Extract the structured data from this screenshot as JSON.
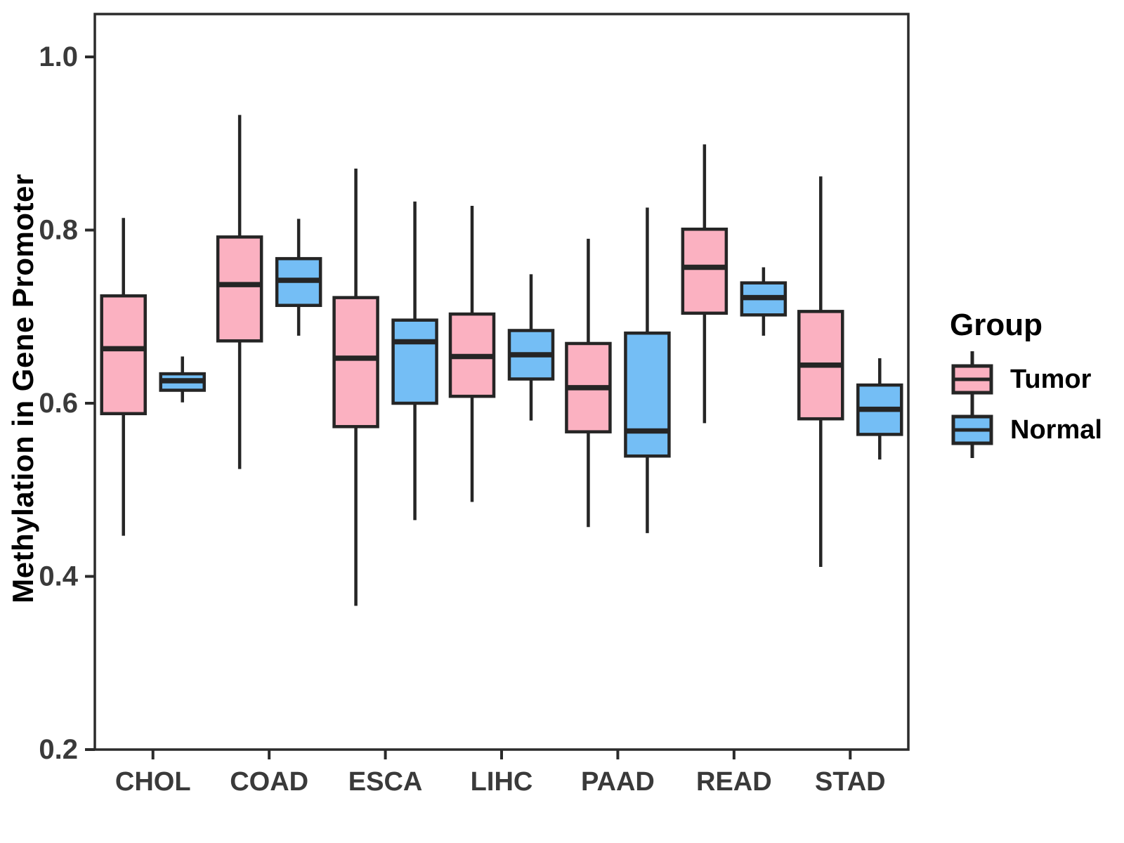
{
  "figure": {
    "y_axis_title": "Methylation in Gene Promoter",
    "legend": {
      "title": "Group",
      "items": [
        {
          "label": "Tumor",
          "color": "#FBB1C1"
        },
        {
          "label": "Normal",
          "color": "#74BEF5"
        }
      ]
    }
  },
  "chart_data": {
    "type": "boxplot",
    "title": "",
    "xlabel": "",
    "ylabel": "Methylation in Gene Promoter",
    "ylim": [
      0.2,
      1.05
    ],
    "yticks": [
      1.0,
      0.8,
      0.6,
      0.4,
      0.2
    ],
    "ytick_labels": [
      "1.0",
      "0.8",
      "0.6",
      "0.4",
      "0.2"
    ],
    "grid": false,
    "panel_border": true,
    "legend_position": "right",
    "categories": [
      "CHOL",
      "COAD",
      "ESCA",
      "LIHC",
      "PAAD",
      "READ",
      "STAD"
    ],
    "groups": [
      {
        "name": "Tumor",
        "fill": "#FBB1C1"
      },
      {
        "name": "Normal",
        "fill": "#74BEF5"
      }
    ],
    "style": {
      "line_color": "#252525",
      "axis_text_color": "#3a3a3a",
      "background": "#ffffff"
    },
    "boxes": [
      {
        "category": "CHOL",
        "group": "Tumor",
        "whisker_low": 0.447,
        "q1": 0.588,
        "median": 0.663,
        "q3": 0.724,
        "whisker_high": 0.814
      },
      {
        "category": "CHOL",
        "group": "Normal",
        "whisker_low": 0.601,
        "q1": 0.615,
        "median": 0.626,
        "q3": 0.634,
        "whisker_high": 0.654
      },
      {
        "category": "COAD",
        "group": "Tumor",
        "whisker_low": 0.524,
        "q1": 0.672,
        "median": 0.737,
        "q3": 0.792,
        "whisker_high": 0.933
      },
      {
        "category": "COAD",
        "group": "Normal",
        "whisker_low": 0.678,
        "q1": 0.713,
        "median": 0.742,
        "q3": 0.767,
        "whisker_high": 0.813
      },
      {
        "category": "ESCA",
        "group": "Tumor",
        "whisker_low": 0.366,
        "q1": 0.573,
        "median": 0.652,
        "q3": 0.722,
        "whisker_high": 0.871
      },
      {
        "category": "ESCA",
        "group": "Normal",
        "whisker_low": 0.465,
        "q1": 0.6,
        "median": 0.671,
        "q3": 0.696,
        "whisker_high": 0.833
      },
      {
        "category": "LIHC",
        "group": "Tumor",
        "whisker_low": 0.486,
        "q1": 0.608,
        "median": 0.654,
        "q3": 0.703,
        "whisker_high": 0.828
      },
      {
        "category": "LIHC",
        "group": "Normal",
        "whisker_low": 0.58,
        "q1": 0.628,
        "median": 0.656,
        "q3": 0.684,
        "whisker_high": 0.749
      },
      {
        "category": "PAAD",
        "group": "Tumor",
        "whisker_low": 0.457,
        "q1": 0.567,
        "median": 0.618,
        "q3": 0.669,
        "whisker_high": 0.79
      },
      {
        "category": "PAAD",
        "group": "Normal",
        "whisker_low": 0.45,
        "q1": 0.539,
        "median": 0.568,
        "q3": 0.681,
        "whisker_high": 0.826
      },
      {
        "category": "READ",
        "group": "Tumor",
        "whisker_low": 0.577,
        "q1": 0.704,
        "median": 0.757,
        "q3": 0.801,
        "whisker_high": 0.899
      },
      {
        "category": "READ",
        "group": "Normal",
        "whisker_low": 0.678,
        "q1": 0.702,
        "median": 0.722,
        "q3": 0.739,
        "whisker_high": 0.757
      },
      {
        "category": "STAD",
        "group": "Tumor",
        "whisker_low": 0.411,
        "q1": 0.582,
        "median": 0.644,
        "q3": 0.706,
        "whisker_high": 0.862
      },
      {
        "category": "STAD",
        "group": "Normal",
        "whisker_low": 0.535,
        "q1": 0.564,
        "median": 0.593,
        "q3": 0.621,
        "whisker_high": 0.652
      }
    ]
  }
}
